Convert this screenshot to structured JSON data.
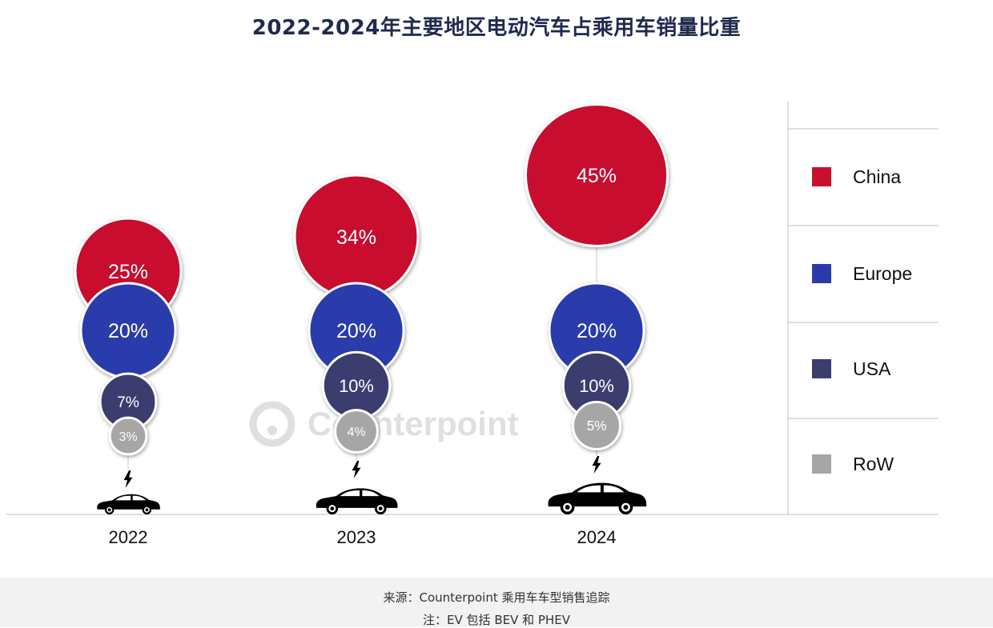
{
  "title": "2022-2024年主要地区电动汽车占乘用车销量比重",
  "watermark": "Counterpoint",
  "footer": {
    "source": "来源：Counterpoint 乘用车车型销售追踪",
    "note": "注：EV 包括 BEV 和 PHEV"
  },
  "chart_data": {
    "type": "bubble",
    "categories": [
      "2022",
      "2023",
      "2024"
    ],
    "series": [
      {
        "name": "China",
        "color": "#c8102e",
        "values": [
          25,
          34,
          45
        ]
      },
      {
        "name": "Europe",
        "color": "#2b3aab",
        "values": [
          20,
          20,
          20
        ]
      },
      {
        "name": "USA",
        "color": "#3a3d6e",
        "values": [
          7,
          10,
          10
        ]
      },
      {
        "name": "RoW",
        "color": "#a6a6a6",
        "values": [
          3,
          4,
          5
        ]
      }
    ],
    "value_suffix": "%",
    "legend_position": "right"
  }
}
